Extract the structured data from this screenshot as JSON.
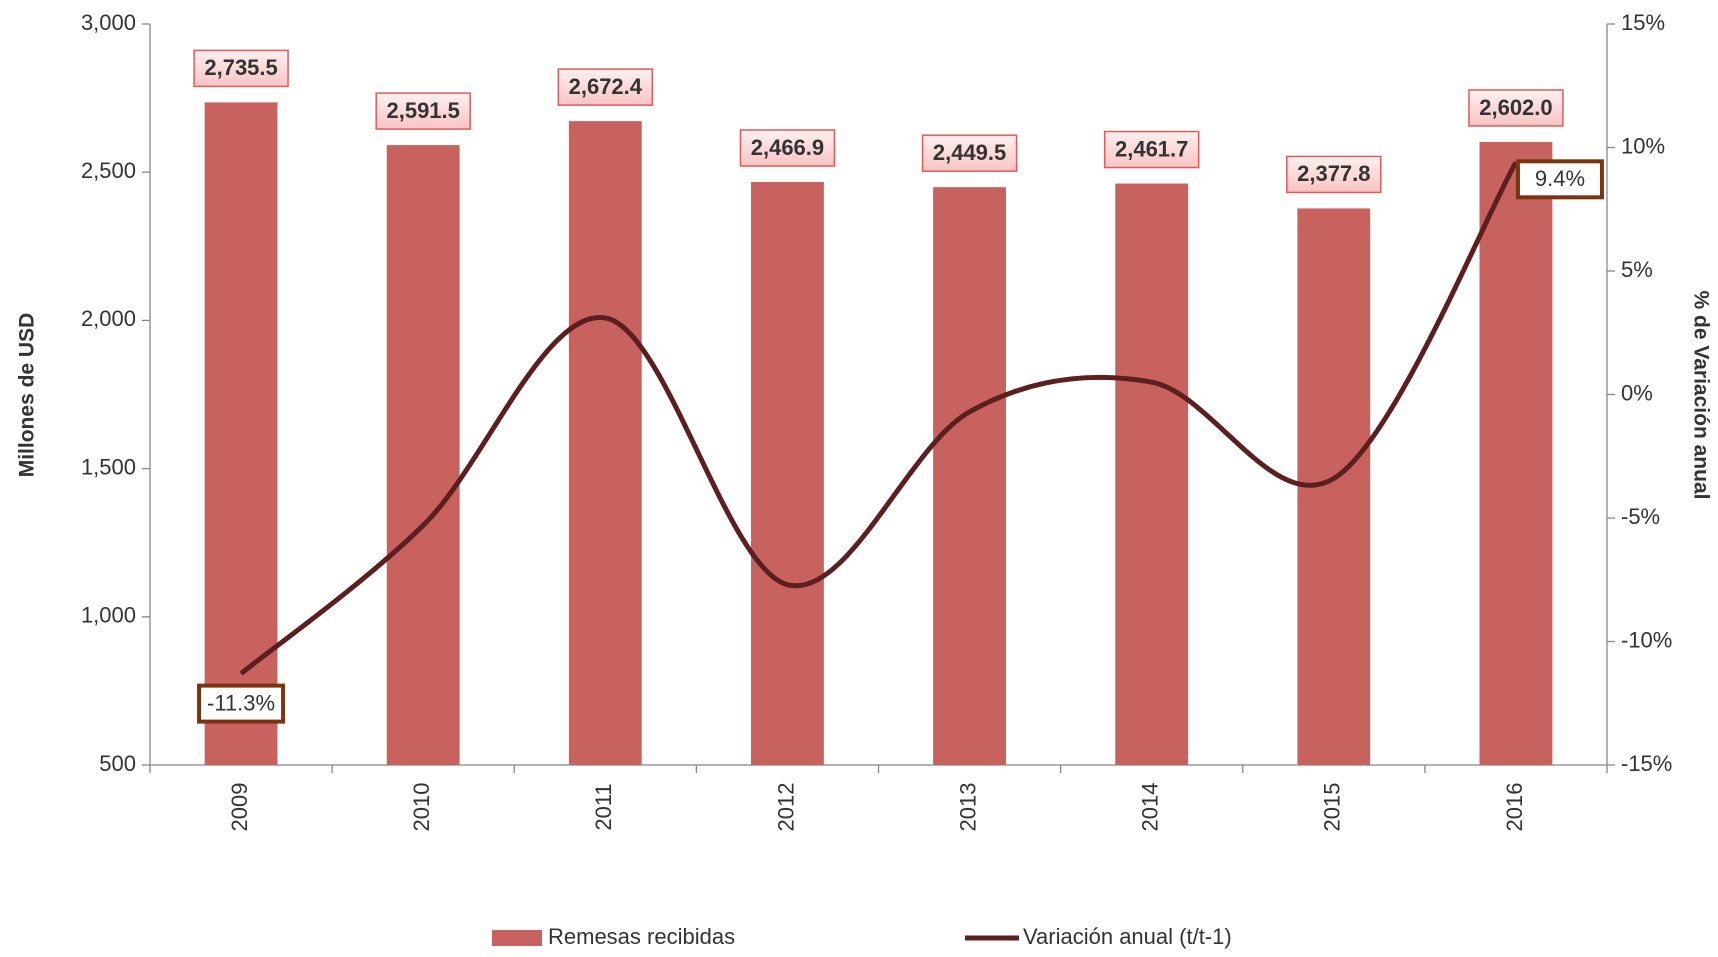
{
  "chart_data": {
    "type": "bar",
    "categories": [
      "2009",
      "2010",
      "2011",
      "2012",
      "2013",
      "2014",
      "2015",
      "2016"
    ],
    "series": [
      {
        "name": "Remesas recibidas",
        "type": "bar",
        "color": "#c8625f",
        "values": [
          2735.5,
          2591.5,
          2672.4,
          2466.9,
          2449.5,
          2461.7,
          2377.8,
          2602.0
        ],
        "value_labels": [
          "2,735.5",
          "2,591.5",
          "2,672.4",
          "2,466.9",
          "2,449.5",
          "2,461.7",
          "2,377.8",
          "2,602.0"
        ]
      },
      {
        "name": "Variación anual (t/t-1)",
        "type": "line",
        "axis": "y2",
        "color": "#5c1f1f",
        "values": [
          -11.3,
          -5.3,
          3.1,
          -7.7,
          -0.7,
          0.5,
          -3.4,
          9.4
        ],
        "value_labels": [
          "-11.3%",
          null,
          null,
          null,
          null,
          null,
          null,
          "9.4%"
        ]
      }
    ],
    "ylabel": "Millones de USD",
    "y2label": "% de Variación anual",
    "ylim": [
      500,
      3000
    ],
    "yticks": [
      500,
      {
        "value": 1000,
        "label": "1,000"
      },
      {
        "value": 1500,
        "label": "1,500"
      },
      {
        "value": 2000,
        "label": "2,000"
      },
      {
        "value": 2500,
        "label": "2,500"
      },
      {
        "value": 3000,
        "label": "3,000"
      }
    ],
    "y2lim": [
      -15,
      15
    ],
    "y2ticks": [
      {
        "value": -15,
        "label": "-15%"
      },
      {
        "value": -10,
        "label": "-10%"
      },
      {
        "value": -5,
        "label": "-5%"
      },
      {
        "value": 0,
        "label": "0%"
      },
      {
        "value": 5,
        "label": "5%"
      },
      {
        "value": 10,
        "label": "10%"
      },
      {
        "value": 15,
        "label": "15%"
      }
    ]
  }
}
